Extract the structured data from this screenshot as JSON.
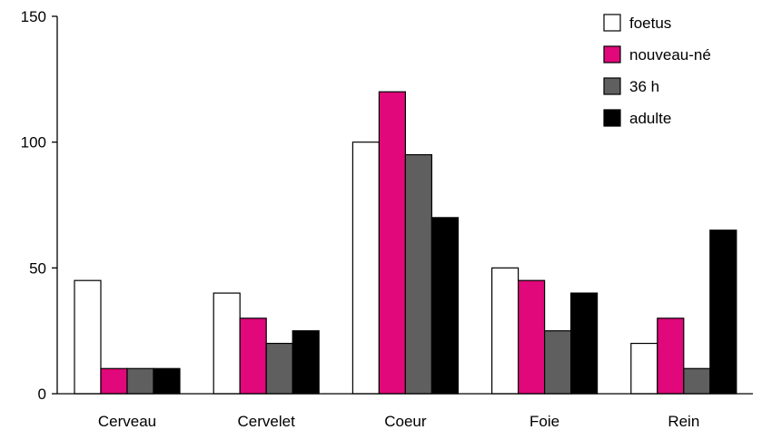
{
  "chart_data": {
    "type": "bar",
    "title": "",
    "xlabel": "",
    "ylabel": "",
    "ylim": [
      0,
      150
    ],
    "yticks": [
      0,
      50,
      100,
      150
    ],
    "grid": false,
    "legend": "top-right",
    "categories": [
      "Cerveau",
      "Cervelet",
      "Coeur",
      "Foie",
      "Rein"
    ],
    "series": [
      {
        "name": "foetus",
        "color": "#ffffff",
        "values": [
          45,
          40,
          100,
          50,
          20
        ]
      },
      {
        "name": "nouveau-né",
        "color": "#e0087a",
        "values": [
          10,
          30,
          120,
          45,
          30
        ]
      },
      {
        "name": "36 h",
        "color": "#5f5f5f",
        "values": [
          10,
          20,
          95,
          25,
          10
        ]
      },
      {
        "name": "adulte",
        "color": "#000000",
        "values": [
          10,
          25,
          70,
          40,
          65
        ]
      }
    ]
  }
}
